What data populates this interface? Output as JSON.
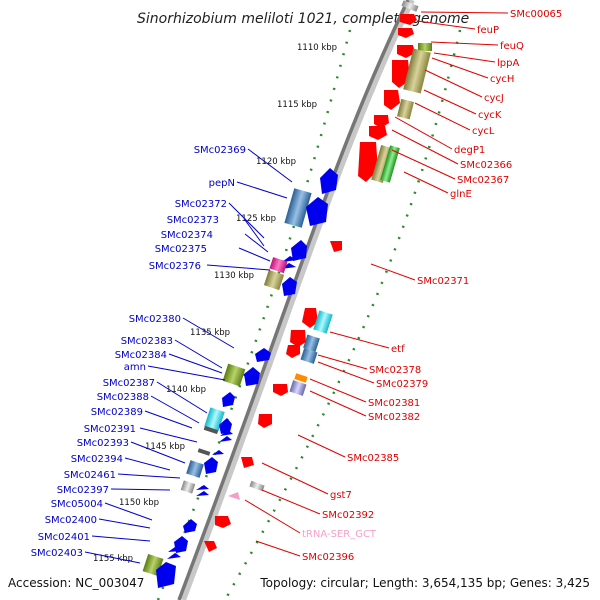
{
  "title": "Sinorhizobium meliloti 1021, complete genome",
  "footer": {
    "accession": "Accession: NC_003047",
    "topology": "Topology: circular; Length: 3,654,135 bp; Genes: 3,425"
  },
  "kbp_labels": [
    "1110 kbp",
    "1115 kbp",
    "1120 kbp",
    "1125 kbp",
    "1130 kbp",
    "1135 kbp",
    "1140 kbp",
    "1145 kbp",
    "1150 kbp",
    "1155 kbp"
  ],
  "right_labels": [
    "SMc00065",
    "feuP",
    "feuQ",
    "lppA",
    "cycH",
    "cycJ",
    "cycK",
    "cycL",
    "degP1",
    "SMc02366",
    "SMc02367",
    "glnE",
    "SMc02371",
    "etf",
    "SMc02378",
    "SMc02379",
    "SMc02381",
    "SMc02382",
    "SMc02385",
    "gst7",
    "SMc02392",
    "tRNA-SER_GCT",
    "SMc02396"
  ],
  "left_labels": [
    "SMc02369",
    "pepN",
    "SMc02372",
    "SMc02373",
    "SMc02374",
    "SMc02375",
    "SMc02376",
    "SMc02380",
    "SMc02383",
    "SMc02384",
    "amn",
    "SMc02387",
    "SMc02388",
    "SMc02389",
    "SMc02391",
    "SMc02393",
    "SMc02394",
    "SMc02461",
    "SMc02397",
    "SMc05004",
    "SMc02400",
    "SMc02401",
    "SMc02403"
  ],
  "colors": {
    "forward_gene": "#ff0000",
    "reverse_gene": "#0000ee",
    "forward_label": "#e00000",
    "reverse_label": "#0000cc",
    "trna": "#f2a0c8",
    "backbone": "#777777",
    "tick": "#2a8a2a"
  }
}
